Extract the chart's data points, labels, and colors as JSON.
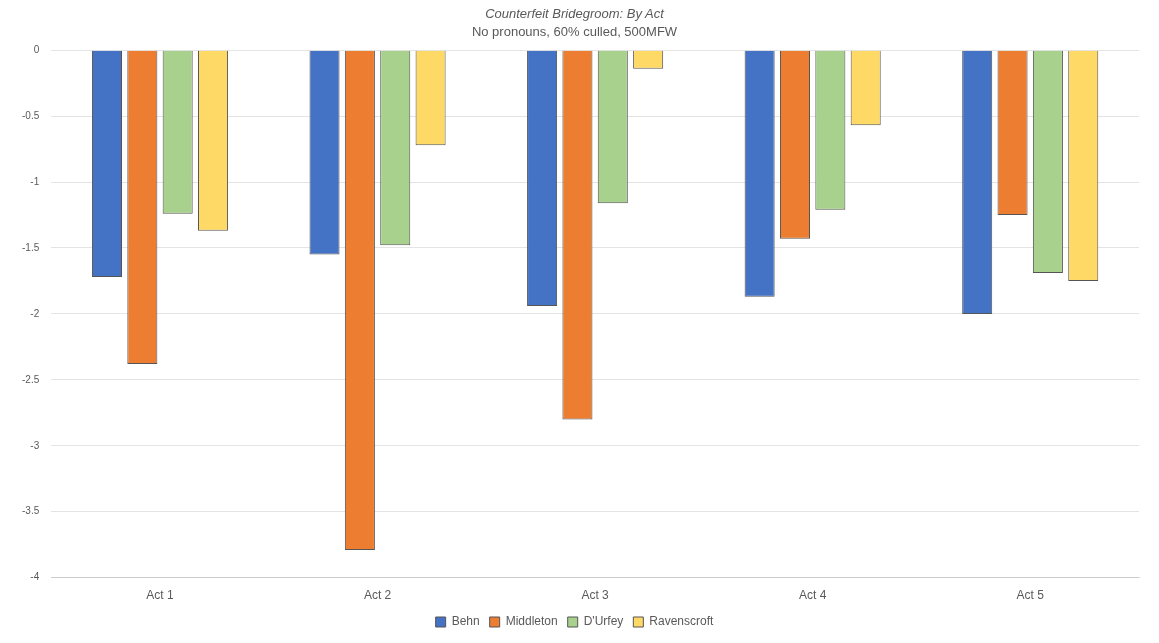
{
  "chart_data": {
    "type": "bar",
    "title": "Counterfeit Bridegroom: By Act",
    "subtitle": "No pronouns, 60% culled, 500MFW",
    "categories": [
      "Act 1",
      "Act 2",
      "Act 3",
      "Act 4",
      "Act 5"
    ],
    "series": [
      {
        "name": "Behn",
        "color": "#4472c4",
        "values": [
          -1.72,
          -1.55,
          -1.94,
          -1.87,
          -2.0
        ]
      },
      {
        "name": "Middleton",
        "color": "#ed7d31",
        "values": [
          -2.38,
          -3.79,
          -2.8,
          -1.43,
          -1.25
        ]
      },
      {
        "name": "D'Urfey",
        "color": "#a9d18e",
        "values": [
          -1.24,
          -1.48,
          -1.16,
          -1.21,
          -1.69
        ]
      },
      {
        "name": "Ravenscroft",
        "color": "#ffd966",
        "values": [
          -1.37,
          -0.72,
          -0.14,
          -0.57,
          -1.75
        ]
      }
    ],
    "ylim": [
      -4,
      0
    ],
    "yticks": [
      -4,
      -3.5,
      -3,
      -2.5,
      -2,
      -1.5,
      -1,
      -0.5,
      0
    ],
    "grid": "y",
    "legend": "bottom"
  }
}
